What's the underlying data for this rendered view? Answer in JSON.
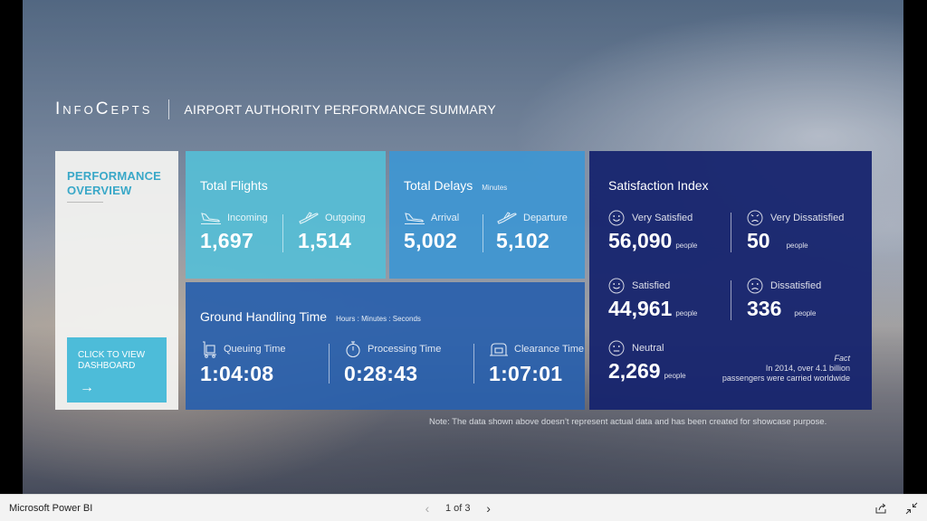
{
  "header": {
    "logo": "InfoCepts",
    "title": "AIRPORT AUTHORITY PERFORMANCE SUMMARY"
  },
  "performance": {
    "title_line1": "PERFORMANCE",
    "title_line2": "OVERVIEW",
    "cta_line1": "CLICK TO VIEW",
    "cta_line2": "DASHBOARD",
    "cta_arrow": "→"
  },
  "total_flights": {
    "title": "Total Flights",
    "incoming_label": "Incoming",
    "incoming_value": "1,697",
    "outgoing_label": "Outgoing",
    "outgoing_value": "1,514"
  },
  "total_delays": {
    "title": "Total Delays",
    "unit": "Minutes",
    "arrival_label": "Arrival",
    "arrival_value": "5,002",
    "departure_label": "Departure",
    "departure_value": "5,102"
  },
  "ground_handling": {
    "title": "Ground Handling Time",
    "unit": "Hours : Minutes : Seconds",
    "queuing_label": "Queuing Time",
    "queuing_value": "1:04:08",
    "processing_label": "Processing Time",
    "processing_value": "0:28:43",
    "clearance_label": "Clearance Time",
    "clearance_value": "1:07:01"
  },
  "satisfaction": {
    "title": "Satisfaction Index",
    "people": "people",
    "very_satisfied_label": "Very Satisfied",
    "very_satisfied_value": "56,090",
    "very_dissatisfied_label": "Very Dissatisfied",
    "very_dissatisfied_value": "50",
    "satisfied_label": "Satisfied",
    "satisfied_value": "44,961",
    "dissatisfied_label": "Dissatisfied",
    "dissatisfied_value": "336",
    "neutral_label": "Neutral",
    "neutral_value": "2,269",
    "fact_heading": "Fact",
    "fact_line1": "In 2014, over 4.1 billion",
    "fact_line2": "passengers were carried worldwide"
  },
  "note": "Note: The data shown above doesn’t represent actual data and has been created for showcase purpose.",
  "bottom_bar": {
    "app_name": "Microsoft Power BI",
    "page_indicator": "1 of 3",
    "prev": "‹",
    "next": "›"
  },
  "icons": {
    "incoming": "plane-landing-icon",
    "outgoing": "plane-takeoff-icon",
    "queuing": "luggage-cart-icon",
    "processing": "stopwatch-icon",
    "clearance": "security-scanner-icon",
    "happy": "smiley-face-icon",
    "sad": "sad-face-icon",
    "neutral": "neutral-face-icon"
  },
  "colors": {
    "accent_cyan": "#4dbcd9",
    "flights_panel": "#56bed6",
    "delays_panel": "#3e96d2",
    "handling_panel": "#2860ac",
    "satisfaction_panel": "#16246e"
  }
}
